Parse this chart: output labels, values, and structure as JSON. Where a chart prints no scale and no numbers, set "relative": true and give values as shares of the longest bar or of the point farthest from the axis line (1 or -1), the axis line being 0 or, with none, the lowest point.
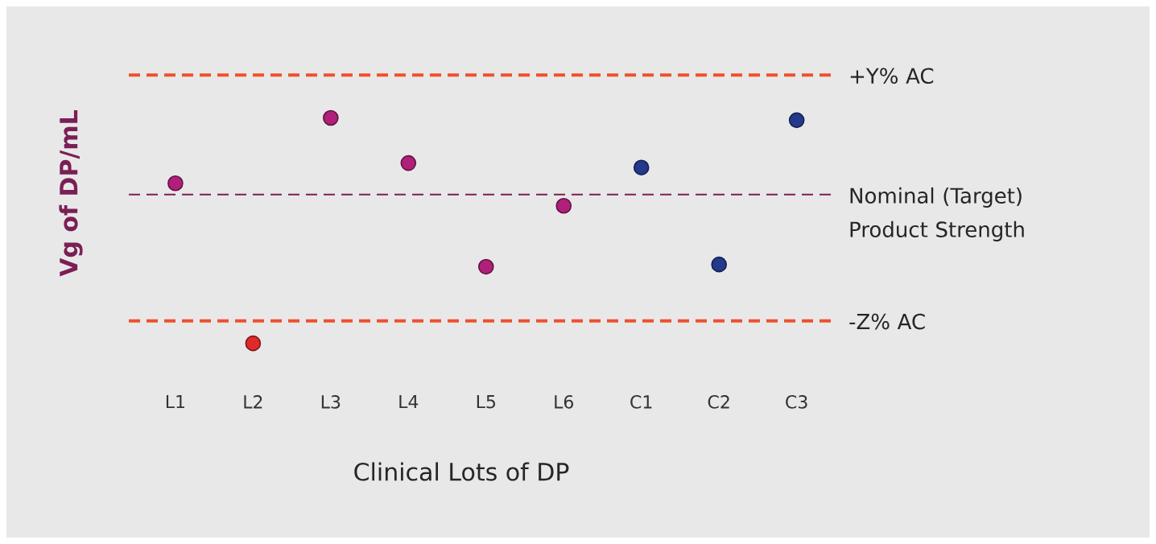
{
  "chart_data": {
    "type": "scatter",
    "relative": true,
    "xlabel": "Clinical Lots of DP",
    "ylabel": "Vg of DP/mL",
    "categories": [
      "L1",
      "L2",
      "L3",
      "L4",
      "L5",
      "L6",
      "C1",
      "C2",
      "C3"
    ],
    "values": [
      0.71,
      0,
      1,
      0.8,
      0.34,
      0.61,
      0.78,
      0.35,
      0.99
    ],
    "colors": [
      "#b0207a",
      "#e02a2a",
      "#b0207a",
      "#b0207a",
      "#b0207a",
      "#b0207a",
      "#24388c",
      "#24388c",
      "#24388c"
    ],
    "marker": "circle",
    "ref_lines": [
      {
        "axis": "y",
        "value": 1.19,
        "label": "+Y% AC",
        "color": "#f0502e",
        "line_style": "dashed"
      },
      {
        "axis": "y",
        "value": 0.66,
        "label": "Nominal (Target) Product Strength",
        "color": "#7a1f55",
        "line_style": "dashed"
      },
      {
        "axis": "y",
        "value": 0.1,
        "label": "-Z% AC",
        "color": "#f0502e",
        "line_style": "dashed"
      }
    ]
  }
}
